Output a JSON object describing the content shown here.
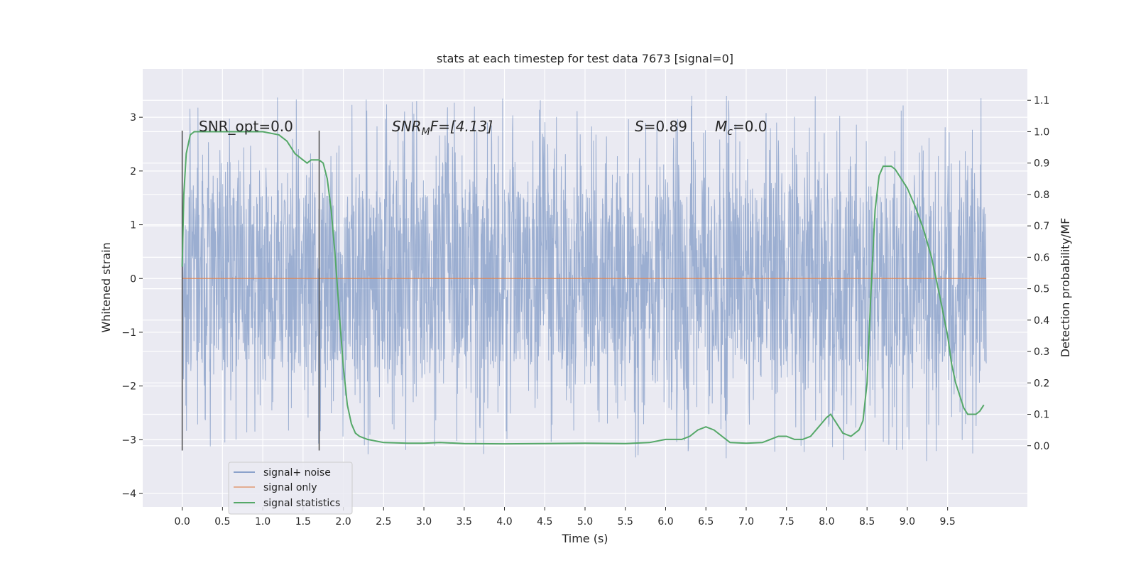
{
  "chart_data": {
    "type": "line",
    "title": "stats at each timestep for test data 7673 [signal=0]",
    "xlabel": "Time (s)",
    "ylabel_left": "Whitened strain",
    "ylabel_right": "Detection probability/MF",
    "xlim": [
      -0.49,
      10.49
    ],
    "ylim_left": [
      -4.25,
      3.9
    ],
    "ylim_right": [
      -0.195,
      1.2
    ],
    "x_ticks": [
      0.0,
      0.5,
      1.0,
      1.5,
      2.0,
      2.5,
      3.0,
      3.5,
      4.0,
      4.5,
      5.0,
      5.5,
      6.0,
      6.5,
      7.0,
      7.5,
      8.0,
      8.5,
      9.0,
      9.5
    ],
    "x_tick_labels": [
      "0.0",
      "0.5",
      "1.0",
      "1.5",
      "2.0",
      "2.5",
      "3.0",
      "3.5",
      "4.0",
      "4.5",
      "5.0",
      "5.5",
      "6.0",
      "6.5",
      "7.0",
      "7.5",
      "8.0",
      "8.5",
      "9.0",
      "9.5"
    ],
    "y_left_ticks": [
      -4,
      -3,
      -2,
      -1,
      0,
      1,
      2,
      3
    ],
    "y_left_tick_labels": [
      "−4",
      "−3",
      "−2",
      "−1",
      "0",
      "1",
      "2",
      "3"
    ],
    "y_right_ticks": [
      0.0,
      0.1,
      0.2,
      0.3,
      0.4,
      0.5,
      0.6,
      0.7,
      0.8,
      0.9,
      1.0,
      1.1
    ],
    "y_right_tick_labels": [
      "0.0",
      "0.1",
      "0.2",
      "0.3",
      "0.4",
      "0.5",
      "0.6",
      "0.7",
      "0.8",
      "0.9",
      "1.0",
      "1.1"
    ],
    "grid": true,
    "legend_position": "lower-left",
    "annotations": {
      "snr_opt": "SNR_opt=0.0",
      "snr_mf_main": "SNR",
      "snr_mf_sub": "M",
      "snr_mf_rest": "F=[4.13]",
      "s_main": "S",
      "s_rest": "=0.89",
      "mc_main": "M",
      "mc_sub": "c",
      "mc_rest": "=0.0"
    },
    "vertical_lines": [
      {
        "x": 0.0,
        "y_range": [
          -3.2,
          2.75
        ]
      },
      {
        "x": 1.7,
        "y_range": [
          -3.2,
          2.75
        ]
      }
    ],
    "noise_band": {
      "x_range": [
        0.0,
        9.98
      ],
      "core_low": -1.45,
      "core_high": 1.5
    },
    "series": [
      {
        "name": "signal+ noise",
        "axis": "left",
        "color": "#4c72b0",
        "x_range": [
          0.0,
          9.98
        ]
      },
      {
        "name": "signal only",
        "axis": "left",
        "color": "#dd8452",
        "x": [
          0.0,
          9.98
        ],
        "y": [
          0.0,
          0.0
        ]
      },
      {
        "name": "signal statistics",
        "axis": "right",
        "color": "#55a868",
        "x": [
          0.0,
          0.02,
          0.05,
          0.1,
          0.15,
          0.2,
          0.3,
          0.5,
          0.8,
          1.0,
          1.2,
          1.3,
          1.4,
          1.5,
          1.55,
          1.6,
          1.65,
          1.7,
          1.75,
          1.8,
          1.85,
          1.9,
          1.95,
          2.0,
          2.05,
          2.1,
          2.15,
          2.2,
          2.3,
          2.5,
          2.8,
          3.0,
          3.2,
          3.5,
          4.0,
          4.5,
          5.0,
          5.5,
          5.8,
          6.0,
          6.2,
          6.3,
          6.4,
          6.5,
          6.6,
          6.7,
          6.8,
          7.0,
          7.2,
          7.3,
          7.4,
          7.5,
          7.6,
          7.7,
          7.8,
          7.9,
          8.0,
          8.05,
          8.1,
          8.2,
          8.3,
          8.4,
          8.45,
          8.5,
          8.55,
          8.6,
          8.65,
          8.7,
          8.75,
          8.8,
          8.85,
          8.9,
          9.0,
          9.1,
          9.2,
          9.3,
          9.4,
          9.5,
          9.55,
          9.6,
          9.7,
          9.75,
          9.8,
          9.85,
          9.9,
          9.95
        ],
        "y": [
          0.57,
          0.8,
          0.93,
          0.99,
          1.0,
          1.0,
          1.0,
          1.0,
          1.0,
          1.0,
          0.99,
          0.97,
          0.93,
          0.91,
          0.9,
          0.91,
          0.91,
          0.91,
          0.9,
          0.85,
          0.75,
          0.6,
          0.42,
          0.25,
          0.13,
          0.07,
          0.04,
          0.03,
          0.02,
          0.01,
          0.008,
          0.008,
          0.01,
          0.007,
          0.006,
          0.007,
          0.008,
          0.007,
          0.01,
          0.02,
          0.02,
          0.03,
          0.05,
          0.06,
          0.05,
          0.03,
          0.01,
          0.008,
          0.01,
          0.02,
          0.03,
          0.03,
          0.02,
          0.02,
          0.03,
          0.06,
          0.09,
          0.1,
          0.08,
          0.04,
          0.03,
          0.05,
          0.08,
          0.2,
          0.5,
          0.75,
          0.86,
          0.89,
          0.89,
          0.89,
          0.88,
          0.86,
          0.82,
          0.76,
          0.69,
          0.6,
          0.48,
          0.35,
          0.26,
          0.2,
          0.12,
          0.1,
          0.1,
          0.1,
          0.11,
          0.13
        ]
      }
    ]
  }
}
